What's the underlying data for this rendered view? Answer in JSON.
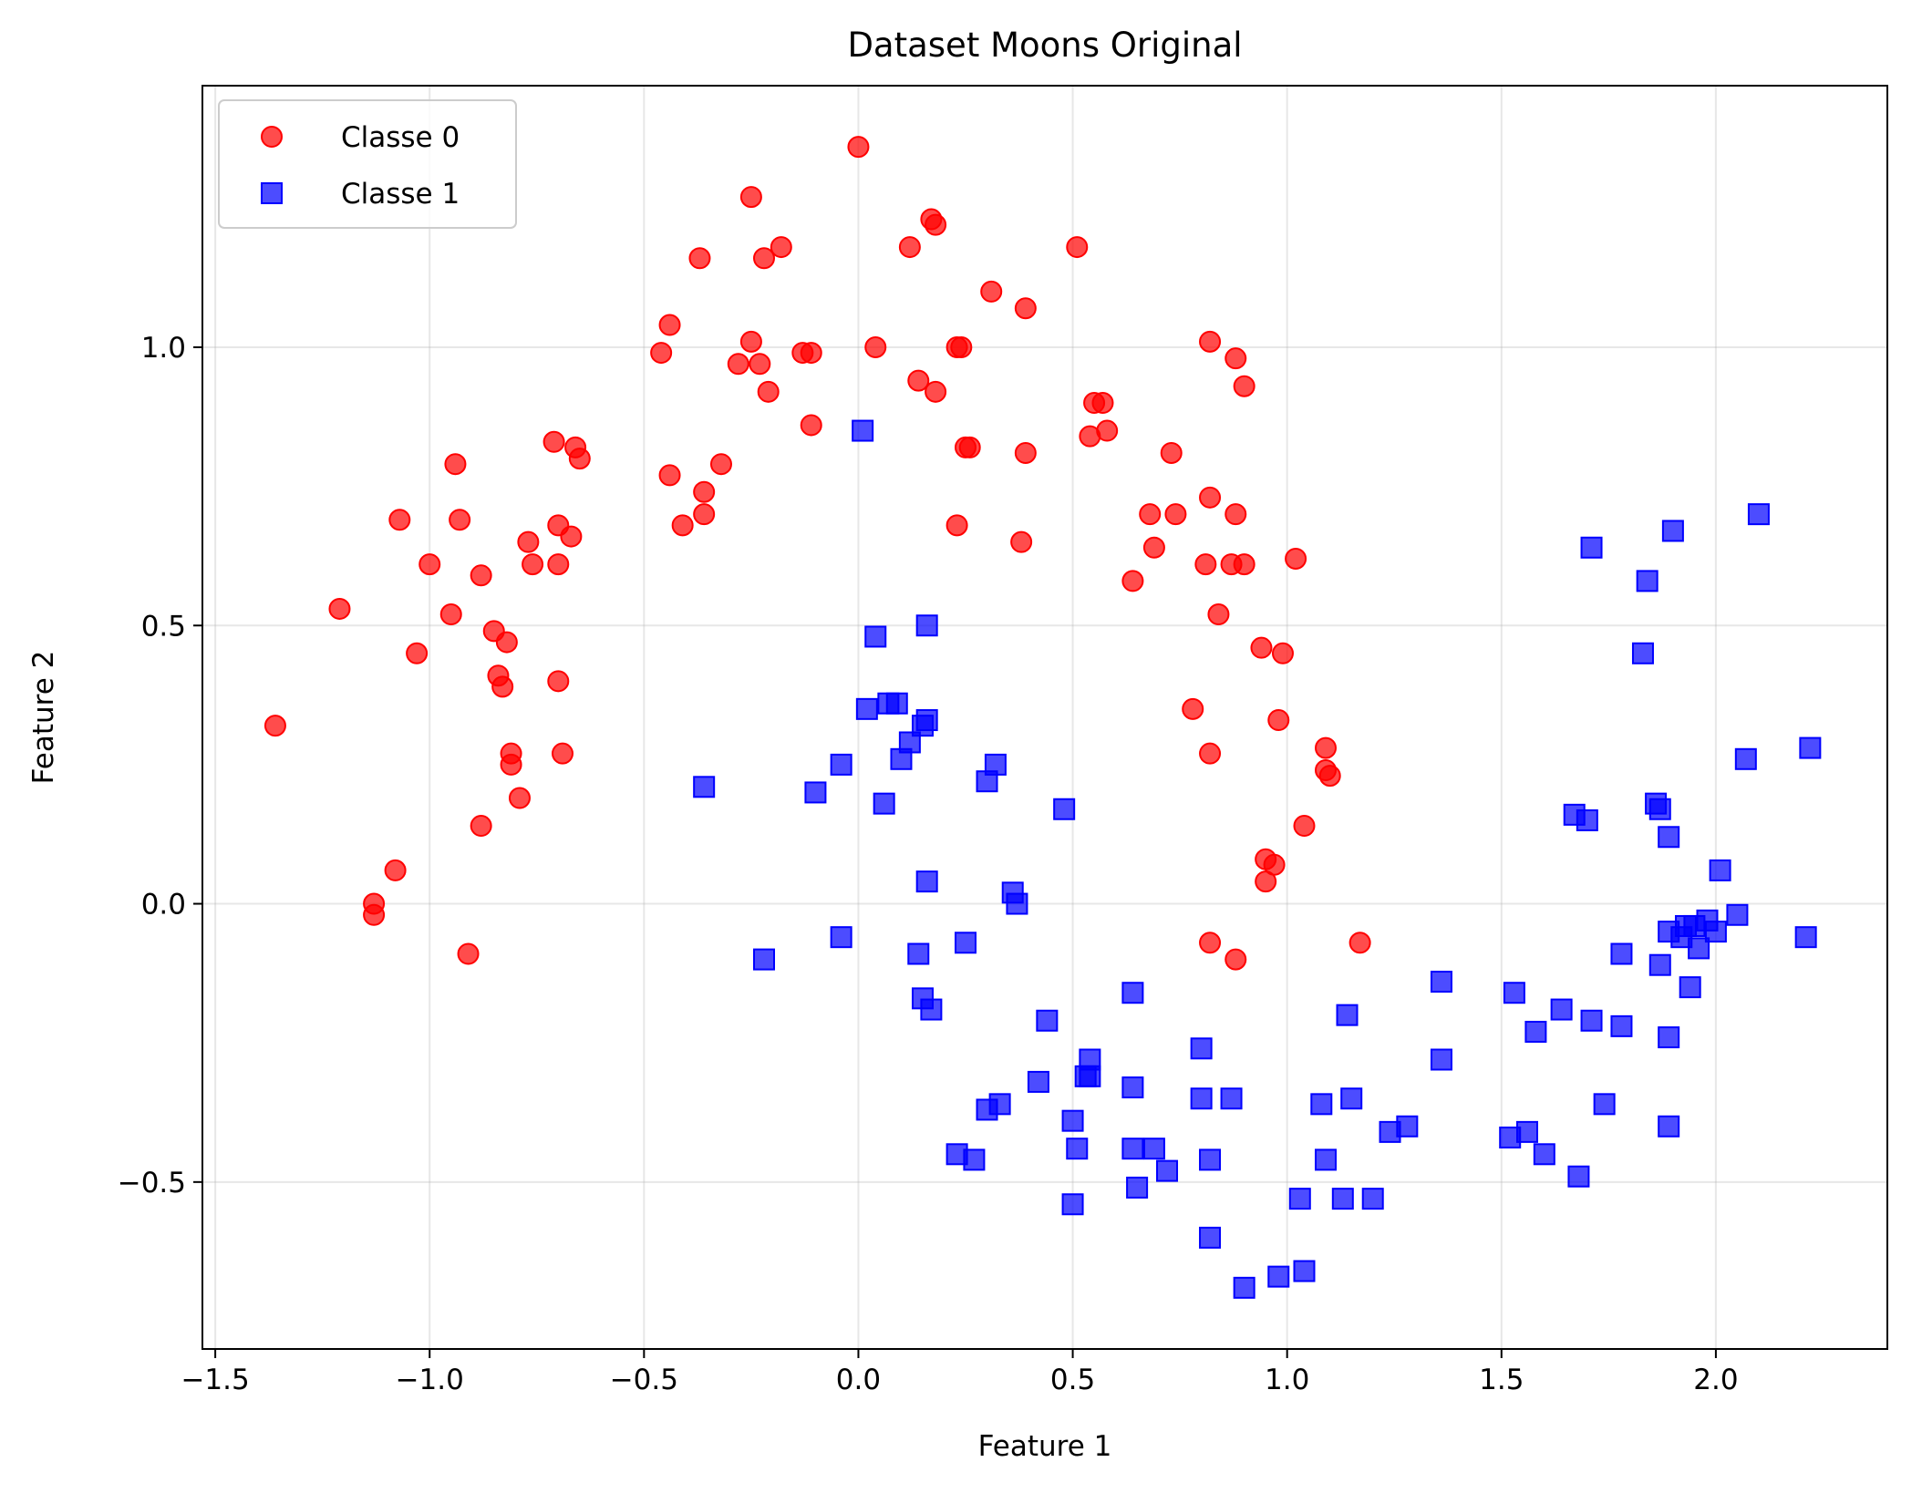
{
  "chart_data": {
    "type": "scatter",
    "title": "Dataset Moons Original",
    "xlabel": "Feature 1",
    "ylabel": "Feature 2",
    "xlim": [
      -1.53,
      2.4
    ],
    "ylim": [
      -0.8,
      1.47
    ],
    "xticks": [
      -1.5,
      -1.0,
      -0.5,
      0.0,
      0.5,
      1.0,
      1.5,
      2.0
    ],
    "xtick_labels": [
      "−1.5",
      "−1.0",
      "−0.5",
      "0.0",
      "0.5",
      "1.0",
      "1.5",
      "2.0"
    ],
    "yticks": [
      -0.5,
      0.0,
      0.5,
      1.0
    ],
    "ytick_labels": [
      "−0.5",
      "0.0",
      "0.5",
      "1.0"
    ],
    "grid": true,
    "legend_position": "top-left",
    "series": [
      {
        "name": "Classe 0",
        "marker": "circle",
        "color": "#ff0000",
        "points": [
          [
            -0.0,
            1.36
          ],
          [
            -0.25,
            1.27
          ],
          [
            0.18,
            1.22
          ],
          [
            0.17,
            1.23
          ],
          [
            -0.18,
            1.18
          ],
          [
            -0.22,
            1.16
          ],
          [
            -0.37,
            1.16
          ],
          [
            0.12,
            1.18
          ],
          [
            0.51,
            1.18
          ],
          [
            0.31,
            1.1
          ],
          [
            0.39,
            1.07
          ],
          [
            -0.44,
            1.04
          ],
          [
            -0.46,
            0.99
          ],
          [
            -0.25,
            1.01
          ],
          [
            -0.28,
            0.97
          ],
          [
            -0.23,
            0.97
          ],
          [
            -0.13,
            0.99
          ],
          [
            -0.11,
            0.99
          ],
          [
            0.04,
            1.0
          ],
          [
            0.23,
            1.0
          ],
          [
            0.24,
            1.0
          ],
          [
            0.82,
            1.01
          ],
          [
            0.88,
            0.98
          ],
          [
            0.14,
            0.94
          ],
          [
            0.18,
            0.92
          ],
          [
            -0.21,
            0.92
          ],
          [
            0.9,
            0.93
          ],
          [
            0.55,
            0.9
          ],
          [
            0.57,
            0.9
          ],
          [
            -0.11,
            0.86
          ],
          [
            0.54,
            0.84
          ],
          [
            0.58,
            0.85
          ],
          [
            0.25,
            0.82
          ],
          [
            0.26,
            0.82
          ],
          [
            0.39,
            0.81
          ],
          [
            0.73,
            0.81
          ],
          [
            -0.71,
            0.83
          ],
          [
            -0.66,
            0.82
          ],
          [
            -0.65,
            0.8
          ],
          [
            -0.94,
            0.79
          ],
          [
            -0.32,
            0.79
          ],
          [
            -0.44,
            0.77
          ],
          [
            -0.36,
            0.74
          ],
          [
            -0.36,
            0.7
          ],
          [
            -0.41,
            0.68
          ],
          [
            0.23,
            0.68
          ],
          [
            0.68,
            0.7
          ],
          [
            0.74,
            0.7
          ],
          [
            0.82,
            0.73
          ],
          [
            0.88,
            0.7
          ],
          [
            -1.07,
            0.69
          ],
          [
            -0.93,
            0.69
          ],
          [
            -0.7,
            0.68
          ],
          [
            -0.67,
            0.66
          ],
          [
            -0.77,
            0.65
          ],
          [
            -0.76,
            0.61
          ],
          [
            -0.7,
            0.61
          ],
          [
            0.38,
            0.65
          ],
          [
            0.69,
            0.64
          ],
          [
            -1.0,
            0.61
          ],
          [
            -0.88,
            0.59
          ],
          [
            0.81,
            0.61
          ],
          [
            0.87,
            0.61
          ],
          [
            0.9,
            0.61
          ],
          [
            1.02,
            0.62
          ],
          [
            0.64,
            0.58
          ],
          [
            -1.21,
            0.53
          ],
          [
            -0.95,
            0.52
          ],
          [
            0.84,
            0.52
          ],
          [
            -1.03,
            0.45
          ],
          [
            -0.85,
            0.49
          ],
          [
            -0.82,
            0.47
          ],
          [
            0.94,
            0.46
          ],
          [
            0.99,
            0.45
          ],
          [
            -0.84,
            0.41
          ],
          [
            -0.83,
            0.39
          ],
          [
            -0.7,
            0.4
          ],
          [
            -1.36,
            0.32
          ],
          [
            0.78,
            0.35
          ],
          [
            0.98,
            0.33
          ],
          [
            -0.81,
            0.27
          ],
          [
            -0.69,
            0.27
          ],
          [
            -0.81,
            0.25
          ],
          [
            0.82,
            0.27
          ],
          [
            1.09,
            0.28
          ],
          [
            1.09,
            0.24
          ],
          [
            1.1,
            0.23
          ],
          [
            -0.79,
            0.19
          ],
          [
            1.04,
            0.14
          ],
          [
            -0.88,
            0.14
          ],
          [
            -1.08,
            0.06
          ],
          [
            0.95,
            0.08
          ],
          [
            0.97,
            0.07
          ],
          [
            0.95,
            0.04
          ],
          [
            -1.13,
            0.0
          ],
          [
            -1.13,
            -0.02
          ],
          [
            0.82,
            -0.07
          ],
          [
            1.17,
            -0.07
          ],
          [
            0.88,
            -0.1
          ],
          [
            -0.91,
            -0.09
          ]
        ]
      },
      {
        "name": "Classe 1",
        "marker": "square",
        "color": "#0000ff",
        "points": [
          [
            0.01,
            0.85
          ],
          [
            2.1,
            0.7
          ],
          [
            1.9,
            0.67
          ],
          [
            1.71,
            0.64
          ],
          [
            1.84,
            0.58
          ],
          [
            0.16,
            0.5
          ],
          [
            0.04,
            0.48
          ],
          [
            1.83,
            0.45
          ],
          [
            0.02,
            0.35
          ],
          [
            0.07,
            0.36
          ],
          [
            0.09,
            0.36
          ],
          [
            0.16,
            0.33
          ],
          [
            0.15,
            0.32
          ],
          [
            0.12,
            0.29
          ],
          [
            0.1,
            0.26
          ],
          [
            2.22,
            0.28
          ],
          [
            2.07,
            0.26
          ],
          [
            -0.04,
            0.25
          ],
          [
            0.32,
            0.25
          ],
          [
            0.3,
            0.22
          ],
          [
            -0.36,
            0.21
          ],
          [
            -0.1,
            0.2
          ],
          [
            0.06,
            0.18
          ],
          [
            1.86,
            0.18
          ],
          [
            1.87,
            0.17
          ],
          [
            0.48,
            0.17
          ],
          [
            1.67,
            0.16
          ],
          [
            1.7,
            0.15
          ],
          [
            1.89,
            0.12
          ],
          [
            2.01,
            0.06
          ],
          [
            0.16,
            0.04
          ],
          [
            0.36,
            0.02
          ],
          [
            0.37,
            0.0
          ],
          [
            2.05,
            -0.02
          ],
          [
            1.98,
            -0.03
          ],
          [
            1.95,
            -0.04
          ],
          [
            1.93,
            -0.04
          ],
          [
            1.89,
            -0.05
          ],
          [
            1.92,
            -0.06
          ],
          [
            2.0,
            -0.05
          ],
          [
            1.96,
            -0.08
          ],
          [
            2.21,
            -0.06
          ],
          [
            -0.04,
            -0.06
          ],
          [
            0.25,
            -0.07
          ],
          [
            -0.22,
            -0.1
          ],
          [
            0.14,
            -0.09
          ],
          [
            1.78,
            -0.09
          ],
          [
            1.87,
            -0.11
          ],
          [
            1.36,
            -0.14
          ],
          [
            1.53,
            -0.16
          ],
          [
            0.64,
            -0.16
          ],
          [
            1.94,
            -0.15
          ],
          [
            0.15,
            -0.17
          ],
          [
            0.17,
            -0.19
          ],
          [
            1.64,
            -0.19
          ],
          [
            1.14,
            -0.2
          ],
          [
            1.71,
            -0.21
          ],
          [
            0.44,
            -0.21
          ],
          [
            1.78,
            -0.22
          ],
          [
            1.58,
            -0.23
          ],
          [
            1.89,
            -0.24
          ],
          [
            0.8,
            -0.26
          ],
          [
            1.36,
            -0.28
          ],
          [
            0.54,
            -0.28
          ],
          [
            0.53,
            -0.31
          ],
          [
            0.54,
            -0.31
          ],
          [
            0.42,
            -0.32
          ],
          [
            0.64,
            -0.33
          ],
          [
            0.8,
            -0.35
          ],
          [
            0.87,
            -0.35
          ],
          [
            1.15,
            -0.35
          ],
          [
            1.74,
            -0.36
          ],
          [
            1.08,
            -0.36
          ],
          [
            0.3,
            -0.37
          ],
          [
            0.33,
            -0.36
          ],
          [
            0.5,
            -0.39
          ],
          [
            1.89,
            -0.4
          ],
          [
            1.28,
            -0.4
          ],
          [
            1.24,
            -0.41
          ],
          [
            1.56,
            -0.41
          ],
          [
            1.52,
            -0.42
          ],
          [
            0.51,
            -0.44
          ],
          [
            0.64,
            -0.44
          ],
          [
            0.69,
            -0.44
          ],
          [
            0.23,
            -0.45
          ],
          [
            1.6,
            -0.45
          ],
          [
            1.09,
            -0.46
          ],
          [
            0.82,
            -0.46
          ],
          [
            0.27,
            -0.46
          ],
          [
            0.72,
            -0.48
          ],
          [
            1.68,
            -0.49
          ],
          [
            0.65,
            -0.51
          ],
          [
            1.03,
            -0.53
          ],
          [
            1.13,
            -0.53
          ],
          [
            1.2,
            -0.53
          ],
          [
            0.5,
            -0.54
          ],
          [
            0.82,
            -0.6
          ],
          [
            1.04,
            -0.66
          ],
          [
            0.98,
            -0.67
          ],
          [
            0.9,
            -0.69
          ]
        ]
      }
    ]
  }
}
